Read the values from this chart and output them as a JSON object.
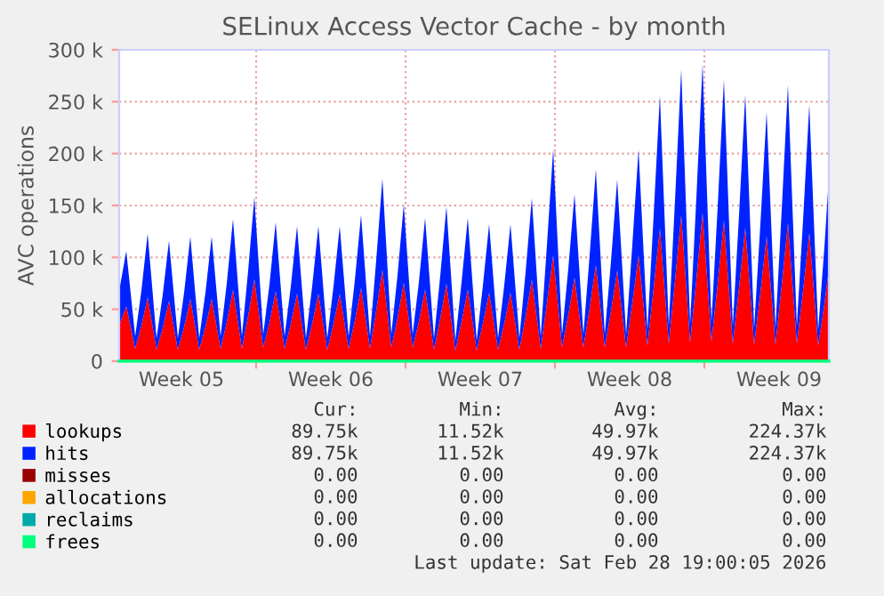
{
  "chart_data": {
    "type": "area",
    "stacked": true,
    "title": "SELinux Access Vector Cache - by month",
    "ylabel": "AVC operations",
    "x": [
      "2026-01-26T14:00",
      "2026-01-26T22:00",
      "2026-01-27T08:00",
      "2026-01-27T15:00",
      "2026-01-27T22:00",
      "2026-01-28T08:00",
      "2026-01-28T15:00",
      "2026-01-28T22:00",
      "2026-01-29T08:00",
      "2026-01-29T15:00",
      "2026-01-29T22:00",
      "2026-01-30T08:00",
      "2026-01-30T15:00",
      "2026-01-30T22:00",
      "2026-01-31T08:00",
      "2026-01-31T15:00",
      "2026-01-31T22:00",
      "2026-02-01T08:00",
      "2026-02-01T15:00",
      "2026-02-01T22:00",
      "2026-02-02T08:00",
      "2026-02-02T15:00",
      "2026-02-02T22:00",
      "2026-02-03T08:00",
      "2026-02-03T15:00",
      "2026-02-03T22:00",
      "2026-02-04T08:00",
      "2026-02-04T15:00",
      "2026-02-04T22:00",
      "2026-02-05T08:00",
      "2026-02-05T15:00",
      "2026-02-05T22:00",
      "2026-02-06T08:00",
      "2026-02-06T15:00",
      "2026-02-06T22:00",
      "2026-02-07T08:00",
      "2026-02-07T15:00",
      "2026-02-07T22:00",
      "2026-02-08T08:00",
      "2026-02-08T15:00",
      "2026-02-08T22:00",
      "2026-02-09T08:00",
      "2026-02-09T15:00",
      "2026-02-09T22:00",
      "2026-02-10T08:00",
      "2026-02-10T15:00",
      "2026-02-10T22:00",
      "2026-02-11T08:00",
      "2026-02-11T15:00",
      "2026-02-11T22:00",
      "2026-02-12T08:00",
      "2026-02-12T15:00",
      "2026-02-12T22:00",
      "2026-02-13T08:00",
      "2026-02-13T15:00",
      "2026-02-13T22:00",
      "2026-02-14T08:00",
      "2026-02-14T15:00",
      "2026-02-14T22:00",
      "2026-02-15T08:00",
      "2026-02-15T15:00",
      "2026-02-15T22:00",
      "2026-02-16T08:00",
      "2026-02-16T15:00",
      "2026-02-16T22:00",
      "2026-02-17T08:00",
      "2026-02-17T15:00",
      "2026-02-17T22:00",
      "2026-02-18T08:00",
      "2026-02-18T15:00",
      "2026-02-18T22:00",
      "2026-02-19T08:00",
      "2026-02-19T15:00",
      "2026-02-19T22:00",
      "2026-02-20T08:00",
      "2026-02-20T15:00",
      "2026-02-20T22:00",
      "2026-02-21T08:00",
      "2026-02-21T15:00",
      "2026-02-21T22:00",
      "2026-02-22T08:00",
      "2026-02-22T15:00",
      "2026-02-22T22:00",
      "2026-02-23T08:00",
      "2026-02-23T15:00",
      "2026-02-23T22:00",
      "2026-02-24T08:00",
      "2026-02-24T15:00",
      "2026-02-24T22:00",
      "2026-02-25T08:00",
      "2026-02-25T15:00",
      "2026-02-25T22:00",
      "2026-02-26T08:00",
      "2026-02-26T15:00",
      "2026-02-26T22:00",
      "2026-02-27T08:00",
      "2026-02-27T15:00",
      "2026-02-27T22:00",
      "2026-02-28T08:00",
      "2026-02-28T15:00",
      "2026-02-28T20:00"
    ],
    "series": [
      {
        "name": "lookups",
        "color": "#ff0000",
        "values": [
          34000,
          53000,
          12000,
          34000,
          61500,
          11000,
          32000,
          58000,
          11000,
          33000,
          60000,
          11000,
          33000,
          60000,
          12000,
          37500,
          68500,
          12000,
          43500,
          79000,
          13000,
          37000,
          67000,
          12000,
          36000,
          65000,
          11000,
          36000,
          65000,
          11000,
          36000,
          65000,
          12000,
          39000,
          70500,
          12000,
          48500,
          88000,
          13000,
          41500,
          75500,
          13000,
          38000,
          69000,
          11000,
          41000,
          74500,
          10000,
          38000,
          69000,
          10000,
          36500,
          66000,
          11000,
          36500,
          66000,
          11000,
          43000,
          78500,
          12000,
          56000,
          102000,
          13000,
          44500,
          80500,
          13000,
          51000,
          92500,
          13000,
          48000,
          87500,
          13000,
          56000,
          102000,
          15000,
          70500,
          128000,
          17000,
          77500,
          140500,
          18000,
          78500,
          143000,
          19000,
          74500,
          135500,
          17000,
          70500,
          128500,
          16000,
          66000,
          120000,
          16000,
          73000,
          133000,
          17000,
          68000,
          123500,
          15000,
          55000,
          88500
        ]
      },
      {
        "name": "hits",
        "color": "#0022ff",
        "values": [
          34000,
          53000,
          12000,
          34000,
          61500,
          11000,
          32000,
          58000,
          11000,
          33000,
          60000,
          11000,
          33000,
          60000,
          12000,
          37500,
          68500,
          12000,
          43500,
          79000,
          13000,
          37000,
          67000,
          12000,
          36000,
          65000,
          11000,
          36000,
          65000,
          11000,
          36000,
          65000,
          12000,
          39000,
          70500,
          12000,
          48500,
          88000,
          13000,
          41500,
          75500,
          13000,
          38000,
          69000,
          11000,
          41000,
          74500,
          10000,
          38000,
          69000,
          10000,
          36500,
          66000,
          11000,
          36500,
          66000,
          11000,
          43000,
          78500,
          12000,
          56000,
          102000,
          13000,
          44500,
          80500,
          13000,
          51000,
          92500,
          13000,
          48000,
          87500,
          13000,
          56000,
          102000,
          15000,
          70500,
          128000,
          17000,
          77500,
          140500,
          18000,
          78500,
          143000,
          19000,
          74500,
          135500,
          17000,
          70500,
          128500,
          16000,
          66000,
          120000,
          16000,
          73000,
          133000,
          17000,
          68000,
          123500,
          15000,
          55000,
          88500
        ]
      },
      {
        "name": "misses",
        "color": "#990000",
        "type": "line",
        "values": [
          null,
          null,
          null,
          null,
          null,
          null,
          null,
          null,
          null,
          null,
          null,
          null,
          null,
          null,
          null,
          null,
          null,
          null,
          null,
          null,
          null,
          null,
          null,
          null,
          null,
          null,
          null,
          null,
          null,
          null,
          null,
          null,
          null,
          null,
          null,
          null,
          null,
          null,
          null,
          null,
          null,
          null,
          null,
          null,
          null,
          null,
          null,
          null,
          null,
          null,
          null,
          null,
          null,
          null,
          null,
          null,
          null,
          null,
          null,
          null,
          null,
          null,
          null,
          null,
          null,
          null,
          null,
          null,
          null,
          null,
          null,
          null,
          null,
          null,
          null,
          null,
          null,
          null,
          null,
          null,
          null,
          null,
          null,
          null,
          null,
          null,
          null,
          null,
          null,
          null,
          null,
          null,
          null,
          null,
          null,
          null,
          null,
          null,
          null,
          null,
          null
        ]
      },
      {
        "name": "allocations",
        "color": "#ffa500",
        "type": "line",
        "values": [
          null,
          null,
          null,
          null,
          null,
          null,
          null,
          null,
          null,
          null,
          null,
          null,
          null,
          null,
          null,
          null,
          null,
          null,
          null,
          null,
          null,
          null,
          null,
          null,
          null,
          null,
          null,
          null,
          null,
          null,
          null,
          null,
          null,
          null,
          null,
          null,
          null,
          null,
          null,
          null,
          null,
          null,
          null,
          null,
          null,
          null,
          null,
          null,
          null,
          null,
          null,
          null,
          null,
          null,
          null,
          null,
          null,
          null,
          null,
          null,
          null,
          null,
          null,
          null,
          null,
          null,
          null,
          null,
          null,
          null,
          null,
          null,
          null,
          null,
          null,
          null,
          null,
          null,
          null,
          null,
          null,
          null,
          null,
          null,
          null,
          null,
          null,
          null,
          null,
          null,
          null,
          null,
          null,
          null,
          null,
          null,
          null,
          null,
          null,
          null,
          null
        ]
      },
      {
        "name": "reclaims",
        "color": "#00aaaa",
        "type": "line",
        "values": [
          null,
          null,
          null,
          null,
          null,
          null,
          null,
          null,
          null,
          null,
          null,
          null,
          null,
          null,
          null,
          null,
          null,
          null,
          null,
          null,
          null,
          null,
          null,
          null,
          null,
          null,
          null,
          null,
          null,
          null,
          null,
          null,
          null,
          null,
          null,
          null,
          null,
          null,
          null,
          null,
          null,
          null,
          null,
          null,
          null,
          null,
          null,
          null,
          null,
          null,
          null,
          null,
          null,
          null,
          null,
          null,
          null,
          null,
          null,
          null,
          null,
          null,
          null,
          null,
          null,
          null,
          null,
          null,
          null,
          null,
          null,
          null,
          null,
          null,
          null,
          null,
          null,
          null,
          null,
          null,
          null,
          null,
          null,
          null,
          null,
          null,
          null,
          null,
          null,
          null,
          null,
          null,
          null,
          null,
          null,
          null,
          null,
          null,
          null,
          null,
          null
        ]
      },
      {
        "name": "frees",
        "color": "#00ff7f",
        "type": "line",
        "x": [
          "2026-01-26T14:00",
          "2026-02-28T20:00"
        ],
        "values": [
          0,
          0
        ]
      }
    ],
    "xlim": [
      "2026-01-26T14:00",
      "2026-02-28T20:00"
    ],
    "xticks": [
      {
        "value": "2026-01-29T12:00",
        "label": "Week 05"
      },
      {
        "value": "2026-02-02",
        "label": null
      },
      {
        "value": "2026-02-05T12:00",
        "label": "Week 06"
      },
      {
        "value": "2026-02-09",
        "label": null
      },
      {
        "value": "2026-02-12T12:00",
        "label": "Week 07"
      },
      {
        "value": "2026-02-16",
        "label": null
      },
      {
        "value": "2026-02-19T12:00",
        "label": "Week 08"
      },
      {
        "value": "2026-02-23",
        "label": null
      },
      {
        "value": "2026-02-26T12:00",
        "label": "Week 09"
      }
    ],
    "ylim": [
      0,
      300000
    ],
    "yticks": [
      0,
      {
        "value": 50000,
        "label": "50 k"
      },
      {
        "value": 100000,
        "label": "100 k"
      },
      {
        "value": 150000,
        "label": "150 k"
      },
      {
        "value": 200000,
        "label": "200 k"
      },
      {
        "value": 250000,
        "label": "250 k"
      },
      {
        "value": 300000,
        "label": "300 k"
      }
    ],
    "grid": true,
    "legend": "bottom",
    "annotations": [
      "Cur:",
      "Min:",
      "Avg:",
      "Max:",
      "89.75k",
      "11.52k",
      "49.97k",
      "224.37k",
      "89.75k",
      "11.52k",
      "49.97k",
      "224.37k",
      "0.00",
      "0.00",
      "0.00",
      "0.00",
      "0.00",
      "0.00",
      "0.00",
      "0.00",
      "0.00",
      "0.00",
      "0.00",
      "0.00",
      "0.00",
      "0.00",
      "0.00",
      "0.00",
      "Last update: Sat Feb 28 19:00:05 2026"
    ]
  }
}
